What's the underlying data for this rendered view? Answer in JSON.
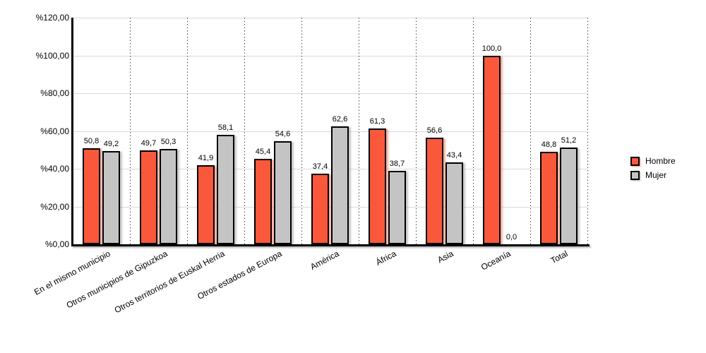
{
  "chart_data": {
    "type": "bar",
    "title": "",
    "xlabel": "",
    "ylabel": "",
    "categories": [
      "En el mismo municipio",
      "Otros municipios de Gipuzkoa",
      "Otros territorios de Euskal Herria",
      "Otros estados de Europa",
      "América",
      "África",
      "Asia",
      "Oceanía",
      "Total"
    ],
    "series": [
      {
        "name": "Hombre",
        "color": "#f9583a",
        "shadow_color": "rgba(249,110,80,0.55)",
        "values": [
          50.8,
          49.7,
          41.9,
          45.4,
          37.4,
          61.3,
          56.6,
          100.0,
          48.8
        ]
      },
      {
        "name": "Mujer",
        "color": "#c4c4c4",
        "shadow_color": "rgba(150,150,150,0.50)",
        "values": [
          49.2,
          50.3,
          58.1,
          54.6,
          62.6,
          38.7,
          43.4,
          0.0,
          51.2
        ]
      }
    ],
    "ylim": [
      0,
      120
    ],
    "y_ticks": [
      {
        "value": 0,
        "label": "%0,00"
      },
      {
        "value": 20,
        "label": "%20,00"
      },
      {
        "value": 40,
        "label": "%40,00"
      },
      {
        "value": 60,
        "label": "%60,00"
      },
      {
        "value": 80,
        "label": "%80,00"
      },
      {
        "value": 100,
        "label": "%100,00"
      },
      {
        "value": 120,
        "label": "%120,00"
      }
    ],
    "value_labels_shown": true,
    "decimal_separator": ",",
    "grid": {
      "horizontal": "solid-light-gray",
      "vertical": "dotted-category-separators"
    },
    "legend_position": "right",
    "bar_border_color": "#000000",
    "axis_color": "#000000"
  }
}
